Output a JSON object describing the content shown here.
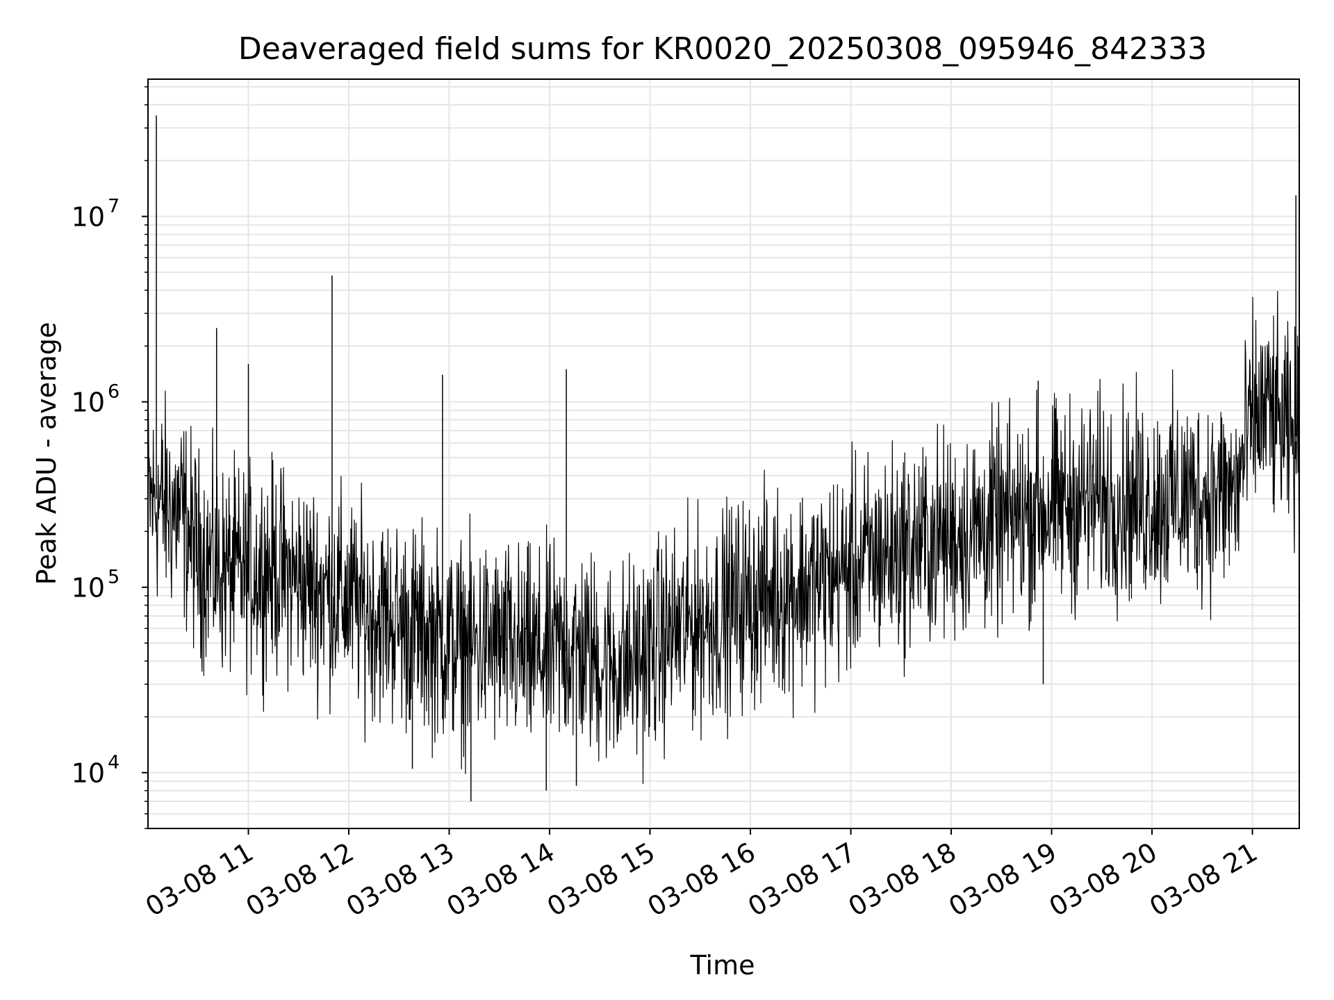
{
  "chart_data": {
    "type": "line",
    "title": "Deaveraged field sums for KR0020_20250308_095946_842333",
    "xlabel": "Time",
    "ylabel": "Peak ADU - average",
    "yscale": "log",
    "xlim": [
      "03-08 10:00",
      "03-08 21:28"
    ],
    "ylim": [
      5000,
      55000000
    ],
    "grid": true,
    "grid_minor": true,
    "line_color": "#000000",
    "grid_color": "#e6e6e6",
    "xticks": [
      {
        "value": "03-08 11:00",
        "label": "03-08 11"
      },
      {
        "value": "03-08 12:00",
        "label": "03-08 12"
      },
      {
        "value": "03-08 13:00",
        "label": "03-08 13"
      },
      {
        "value": "03-08 14:00",
        "label": "03-08 14"
      },
      {
        "value": "03-08 15:00",
        "label": "03-08 15"
      },
      {
        "value": "03-08 16:00",
        "label": "03-08 16"
      },
      {
        "value": "03-08 17:00",
        "label": "03-08 17"
      },
      {
        "value": "03-08 18:00",
        "label": "03-08 18"
      },
      {
        "value": "03-08 19:00",
        "label": "03-08 19"
      },
      {
        "value": "03-08 20:00",
        "label": "03-08 20"
      },
      {
        "value": "03-08 21:00",
        "label": "03-08 21"
      }
    ],
    "yticks": [
      {
        "value": 10000,
        "base": "10",
        "exp": "4"
      },
      {
        "value": 100000,
        "base": "10",
        "exp": "5"
      },
      {
        "value": 1000000,
        "base": "10",
        "exp": "6"
      },
      {
        "value": 10000000,
        "base": "10",
        "exp": "7"
      }
    ],
    "series": [
      {
        "x": [
          "03-08 10:00",
          "03-08 10:10",
          "03-08 10:20",
          "03-08 10:30",
          "03-08 10:40",
          "03-08 10:50",
          "03-08 11:00",
          "03-08 11:10",
          "03-08 11:20",
          "03-08 11:30",
          "03-08 11:40",
          "03-08 11:50",
          "03-08 12:00",
          "03-08 12:10",
          "03-08 12:20",
          "03-08 12:30",
          "03-08 12:40",
          "03-08 12:50",
          "03-08 13:00",
          "03-08 13:10",
          "03-08 13:20",
          "03-08 13:30",
          "03-08 13:40",
          "03-08 13:50",
          "03-08 14:00",
          "03-08 14:10",
          "03-08 14:20",
          "03-08 14:30",
          "03-08 14:40",
          "03-08 14:50",
          "03-08 15:00",
          "03-08 15:10",
          "03-08 15:20",
          "03-08 15:30",
          "03-08 15:40",
          "03-08 15:50",
          "03-08 16:00",
          "03-08 16:10",
          "03-08 16:20",
          "03-08 16:30",
          "03-08 16:40",
          "03-08 16:50",
          "03-08 17:00",
          "03-08 17:10",
          "03-08 17:20",
          "03-08 17:30",
          "03-08 17:40",
          "03-08 17:50",
          "03-08 18:00",
          "03-08 18:10",
          "03-08 18:20",
          "03-08 18:30",
          "03-08 18:40",
          "03-08 18:50",
          "03-08 19:00",
          "03-08 19:10",
          "03-08 19:20",
          "03-08 19:30",
          "03-08 19:40",
          "03-08 19:50",
          "03-08 20:00",
          "03-08 20:10",
          "03-08 20:20",
          "03-08 20:30",
          "03-08 20:40",
          "03-08 20:50",
          "03-08 21:00",
          "03-08 21:10",
          "03-08 21:20",
          "03-08 21:28"
        ],
        "y": [
          300000,
          280000,
          250000,
          150000,
          130000,
          120000,
          120000,
          130000,
          120000,
          110000,
          100000,
          95000,
          85000,
          75000,
          70000,
          65000,
          60000,
          55000,
          50000,
          48000,
          50000,
          48000,
          45000,
          42000,
          45000,
          48000,
          45000,
          40000,
          38000,
          40000,
          45000,
          55000,
          60000,
          65000,
          70000,
          80000,
          85000,
          90000,
          95000,
          100000,
          105000,
          115000,
          125000,
          140000,
          150000,
          160000,
          170000,
          180000,
          190000,
          200000,
          210000,
          220000,
          240000,
          260000,
          270000,
          280000,
          290000,
          300000,
          300000,
          290000,
          290000,
          300000,
          310000,
          310000,
          320000,
          320000,
          800000,
          900000,
          650000,
          600000
        ]
      }
    ],
    "spikes": [
      {
        "x": "03-08 10:05",
        "y": 35000000
      },
      {
        "x": "03-08 10:41",
        "y": 2500000
      },
      {
        "x": "03-08 11:00",
        "y": 1600000
      },
      {
        "x": "03-08 11:50",
        "y": 4800000
      },
      {
        "x": "03-08 12:56",
        "y": 1400000
      },
      {
        "x": "03-08 14:10",
        "y": 1500000
      },
      {
        "x": "03-08 18:52",
        "y": 1300000
      },
      {
        "x": "03-08 21:26",
        "y": 13000000
      },
      {
        "x": "03-08 13:13",
        "y": 7000
      },
      {
        "x": "03-08 13:58",
        "y": 8000
      },
      {
        "x": "03-08 14:16",
        "y": 8500
      },
      {
        "x": "03-08 12:38",
        "y": 10500
      },
      {
        "x": "03-08 18:55",
        "y": 30000
      }
    ]
  }
}
